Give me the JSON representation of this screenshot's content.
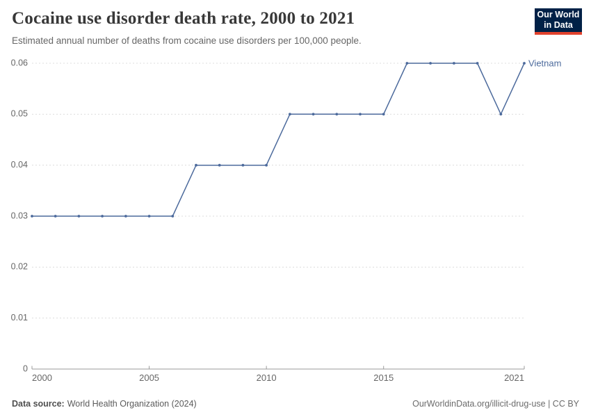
{
  "header": {
    "title": "Cocaine use disorder death rate, 2000 to 2021",
    "subtitle": "Estimated annual number of deaths from cocaine use disorders per 100,000 people.",
    "logo": {
      "line1": "Our World",
      "line2": "in Data",
      "bg_color": "#002147",
      "accent_color": "#e2422d"
    }
  },
  "chart_data": {
    "type": "line",
    "title": "Cocaine use disorder death rate, 2000 to 2021",
    "xlabel": "",
    "ylabel": "",
    "x": [
      2000,
      2001,
      2002,
      2003,
      2004,
      2005,
      2006,
      2007,
      2008,
      2009,
      2010,
      2011,
      2012,
      2013,
      2014,
      2015,
      2016,
      2017,
      2018,
      2019,
      2020,
      2021
    ],
    "series": [
      {
        "name": "Vietnam",
        "color": "#4c6a9c",
        "values": [
          0.03,
          0.03,
          0.03,
          0.03,
          0.03,
          0.03,
          0.03,
          0.04,
          0.04,
          0.04,
          0.04,
          0.05,
          0.05,
          0.05,
          0.05,
          0.05,
          0.06,
          0.06,
          0.06,
          0.06,
          0.05,
          0.06
        ]
      }
    ],
    "x_range": [
      2000,
      2021
    ],
    "ylim": [
      0,
      0.06
    ],
    "yticks": [
      0,
      0.01,
      0.02,
      0.03,
      0.04,
      0.05,
      0.06
    ],
    "ytick_labels": [
      "0",
      "0.01",
      "0.02",
      "0.03",
      "0.04",
      "0.05",
      "0.06"
    ],
    "xticks": [
      2000,
      2005,
      2010,
      2015,
      2021
    ],
    "xtick_labels": [
      "2000",
      "2005",
      "2010",
      "2015",
      "2021"
    ],
    "grid": "horizontal-dashed",
    "legend": "end-of-line-label",
    "gridline_color": "#dcdcdc",
    "axis_color": "#9a9a9a",
    "tick_label_color": "#666666"
  },
  "footer": {
    "source_label": "Data source:",
    "source_text": "World Health Organization (2024)",
    "credit": "OurWorldinData.org/illicit-drug-use | CC BY"
  }
}
